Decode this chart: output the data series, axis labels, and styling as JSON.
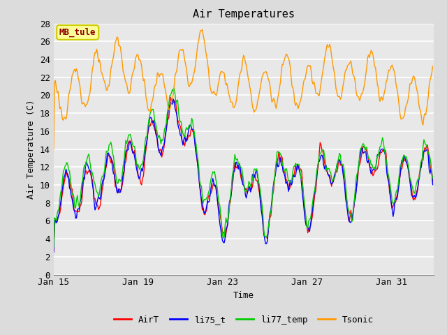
{
  "title": "Air Temperatures",
  "xlabel": "Time",
  "ylabel": "Air Temperature (C)",
  "ylim": [
    0,
    28
  ],
  "yticks": [
    0,
    2,
    4,
    6,
    8,
    10,
    12,
    14,
    16,
    18,
    20,
    22,
    24,
    26,
    28
  ],
  "xtick_labels": [
    "Jan 15",
    "Jan 19",
    "Jan 23",
    "Jan 27",
    "Jan 31"
  ],
  "xtick_positions": [
    0,
    96,
    192,
    288,
    384
  ],
  "xlim": [
    0,
    432
  ],
  "background_color": "#dcdcdc",
  "plot_bg_color": "#e8e8e8",
  "grid_color": "#ffffff",
  "colors": {
    "AirT": "#ff0000",
    "li75_t": "#0000ff",
    "li77_temp": "#00cc00",
    "Tsonic": "#ff9900"
  },
  "legend_labels": [
    "AirT",
    "li75_t",
    "li77_temp",
    "Tsonic"
  ],
  "annotation_text": "MB_tule",
  "annotation_color": "#8b0000",
  "annotation_bg": "#ffff99",
  "annotation_border": "#cccc00",
  "figwidth": 6.4,
  "figheight": 4.8,
  "dpi": 100
}
